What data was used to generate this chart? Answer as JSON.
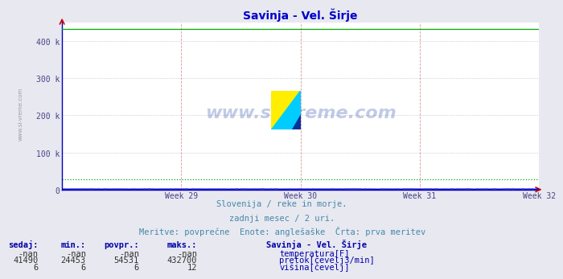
{
  "title": "Savinja - Vel. Širje",
  "title_color": "#0000cc",
  "bg_color": "#e8e8f0",
  "plot_bg_color": "#ffffff",
  "xlabel_weeks": [
    "Week 29",
    "Week 30",
    "Week 31",
    "Week 32"
  ],
  "ylim": [
    0,
    450000
  ],
  "yticks": [
    0,
    100000,
    200000,
    300000,
    400000
  ],
  "ytick_labels": [
    "0",
    "100 k",
    "200 k",
    "300 k",
    "400 k"
  ],
  "n_points": 360,
  "temp_color": "#cc0000",
  "flow_color": "#00aa00",
  "height_color": "#0000cc",
  "avg_flow": 28000,
  "footer_line1": "Slovenija / reke in morje.",
  "footer_line2": "zadnji mesec / 2 uri.",
  "footer_line3": "Meritve: povprečne  Enote: anglešaške  Črta: prva meritev",
  "footer_color": "#4488aa",
  "table_header": [
    "sedaj:",
    "min.:",
    "povpr.:",
    "maks.:",
    "Savinja - Vel. Širje"
  ],
  "table_data": [
    [
      "-nan",
      "-nan",
      "-nan",
      "-nan",
      "temperatura[F]"
    ],
    [
      "41490",
      "24453",
      "54531",
      "432700",
      "pretok[čevelj3/min]"
    ],
    [
      "6",
      "6",
      "6",
      "12",
      "višina[čevelj]"
    ]
  ],
  "legend_colors": [
    "#cc0000",
    "#00aa00",
    "#0000cc"
  ],
  "side_label": "www.si-vreme.com",
  "watermark_text": "www.si-vreme.com",
  "watermark_color": "#3355aa",
  "watermark_alpha": 0.3,
  "logo_yellow": "#ffee00",
  "logo_cyan": "#00ccff",
  "logo_navy": "#003399"
}
